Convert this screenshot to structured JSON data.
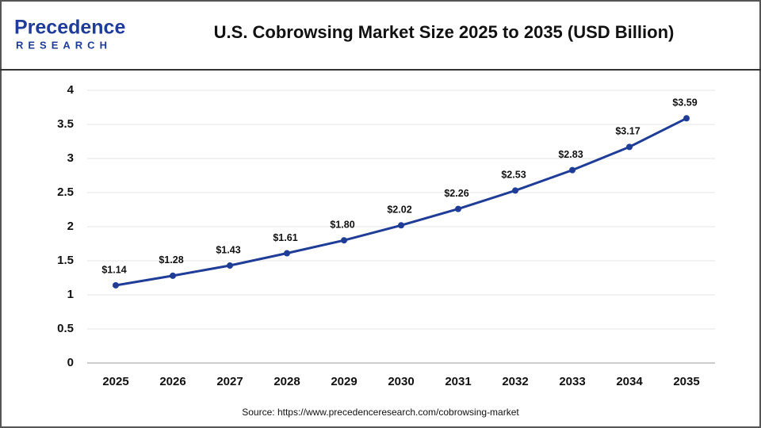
{
  "logo": {
    "name": "Precedence",
    "sub": "RESEARCH"
  },
  "chart_data": {
    "type": "line",
    "title": "U.S. Cobrowsing Market Size 2025 to 2035 (USD Billion)",
    "categories": [
      "2025",
      "2026",
      "2027",
      "2028",
      "2029",
      "2030",
      "2031",
      "2032",
      "2033",
      "2034",
      "2035"
    ],
    "series": [
      {
        "name": "U.S. Cobrowsing Market Size",
        "color": "#1f3c96",
        "values": [
          1.14,
          1.28,
          1.43,
          1.61,
          1.8,
          2.02,
          2.26,
          2.53,
          2.83,
          3.17,
          3.59
        ],
        "value_labels": [
          "$1.14",
          "$1.28",
          "$1.43",
          "$1.61",
          "$1.80",
          "$2.02",
          "$2.26",
          "$2.53",
          "$2.83",
          "$3.17",
          "$3.59"
        ]
      }
    ],
    "ylim": [
      0,
      4
    ],
    "yticks": [
      0,
      0.5,
      1,
      1.5,
      2,
      2.5,
      3,
      3.5,
      4
    ],
    "grid": true,
    "source": "Source: https://www.precedenceresearch.com/cobrowsing-market"
  }
}
